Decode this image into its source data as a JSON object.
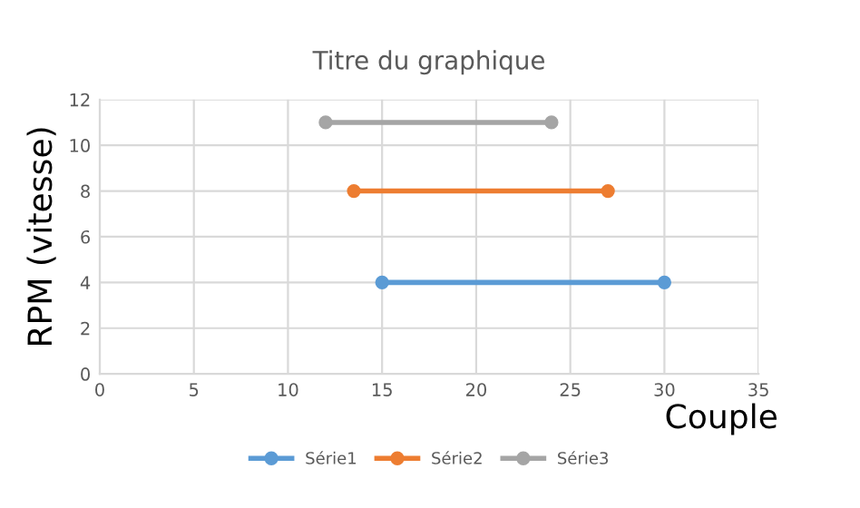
{
  "chart_data": {
    "type": "line",
    "title": "Titre du graphique",
    "xlabel": "Couple",
    "ylabel": "RPM (vitesse)",
    "series": [
      {
        "name": "Série1",
        "color": "#5b9bd5",
        "x": [
          15,
          30
        ],
        "values": [
          4,
          4
        ]
      },
      {
        "name": "Série2",
        "color": "#ed7d31",
        "x": [
          13.5,
          27
        ],
        "values": [
          8,
          8
        ]
      },
      {
        "name": "Série3",
        "color": "#a5a5a5",
        "x": [
          12,
          24
        ],
        "values": [
          11,
          11
        ]
      }
    ],
    "xlim": [
      0,
      35
    ],
    "xticks": [
      0,
      5,
      10,
      15,
      20,
      25,
      30,
      35
    ],
    "ylim": [
      0,
      12
    ],
    "yticks": [
      0,
      2,
      4,
      6,
      8,
      10,
      12
    ],
    "grid": true,
    "legend": "bottom",
    "marker": "circle",
    "line_style": "solid"
  }
}
